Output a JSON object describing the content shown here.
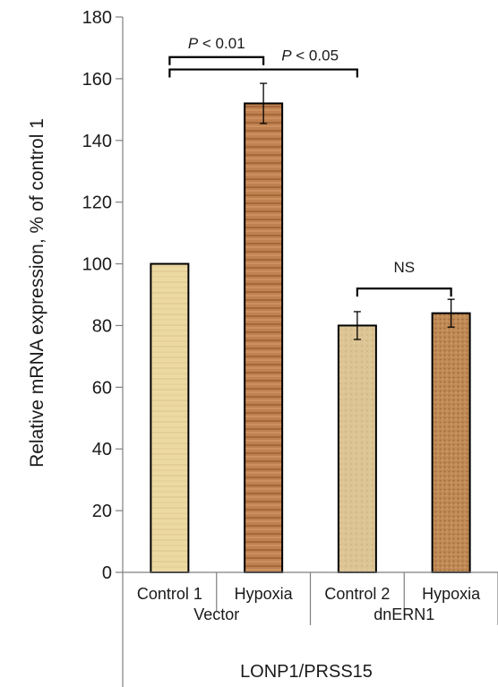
{
  "chart_data": {
    "type": "bar",
    "ylabel": "Relative mRNA expression, % of control 1",
    "ylim": [
      0,
      180
    ],
    "yticks": [
      0,
      20,
      40,
      60,
      80,
      100,
      120,
      140,
      160,
      180
    ],
    "categories": [
      "Control 1",
      "Hypoxia",
      "Control 2",
      "Hypoxia"
    ],
    "groups": [
      {
        "label": "Vector",
        "span": [
          0,
          1
        ]
      },
      {
        "label": "dnERN1",
        "span": [
          2,
          3
        ]
      }
    ],
    "outer_label": "LONP1/PRSS15",
    "values": [
      100,
      152,
      80,
      84
    ],
    "errors": [
      0,
      6.5,
      4.5,
      4.5
    ],
    "bar_fills": [
      "#e9d49a",
      "#b9784a",
      "#d9bf8f",
      "#b8844f"
    ],
    "annotations": [
      {
        "from": 0,
        "to": 1,
        "y": 167,
        "label_italic": "P",
        "label_rest": " < 0.01"
      },
      {
        "from": 0,
        "to": 2,
        "y": 163,
        "label_italic": "P",
        "label_rest": " < 0.05"
      },
      {
        "from": 2,
        "to": 3,
        "y": 92,
        "label_italic": "",
        "label_rest": "NS"
      }
    ],
    "grid": false,
    "legend": "none"
  }
}
